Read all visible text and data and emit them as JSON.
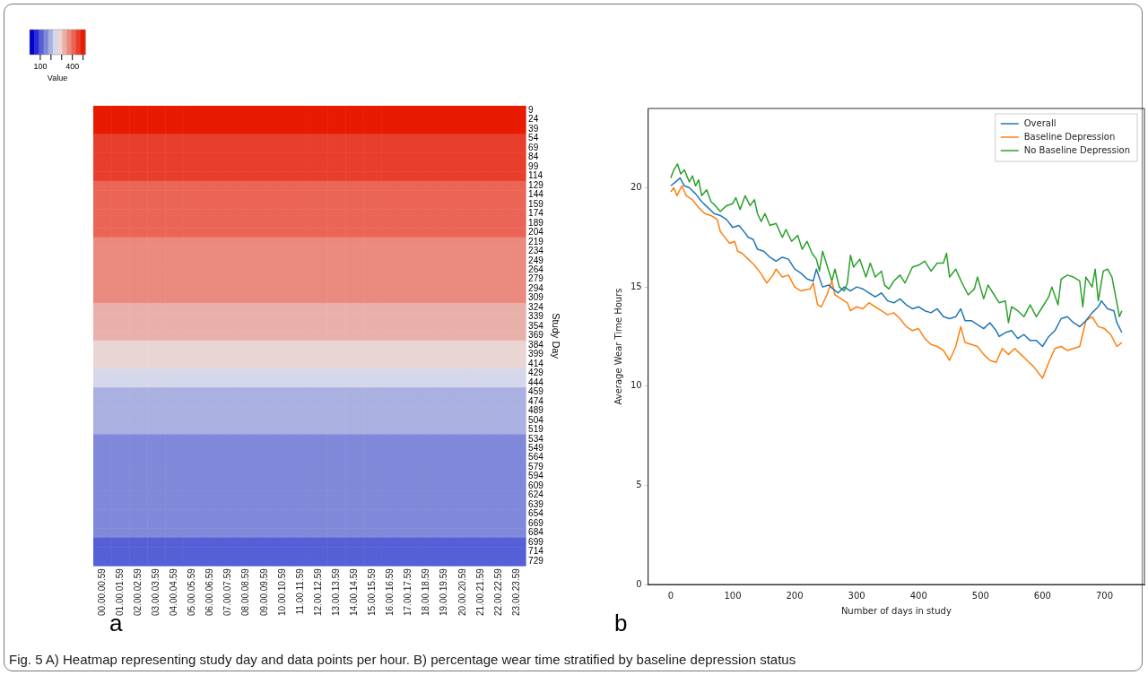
{
  "chart_data": [
    {
      "type": "heatmap",
      "ylabel": "Study Day",
      "clabel": "Value",
      "categories": [
        "00.00.00.59",
        "01.00.01.59",
        "02.00.02.59",
        "03.00.03.59",
        "04.00.04.59",
        "05.00.05.59",
        "06.00.06.59",
        "07.00.07.59",
        "08.00.08.59",
        "09.00.09.59",
        "10.00.10.59",
        "11.00.11.59",
        "12.00.12.59",
        "13.00.13.59",
        "14.00.14.59",
        "15.00.15.59",
        "16.00.16.59",
        "17.00.17.59",
        "18.00.18.59",
        "19.00.19.59",
        "20.00.20.59",
        "21.00.21.59",
        "22.00.22.59",
        "23.00.23.59"
      ],
      "y_categories": [
        "9",
        "24",
        "39",
        "54",
        "69",
        "84",
        "99",
        "114",
        "129",
        "144",
        "159",
        "174",
        "189",
        "204",
        "219",
        "234",
        "249",
        "264",
        "279",
        "294",
        "309",
        "324",
        "339",
        "354",
        "369",
        "384",
        "399",
        "414",
        "429",
        "444",
        "459",
        "474",
        "489",
        "504",
        "519",
        "534",
        "549",
        "564",
        "579",
        "594",
        "609",
        "624",
        "639",
        "654",
        "669",
        "684",
        "699",
        "714",
        "729"
      ],
      "cells": [
        [
          500,
          500,
          500,
          500,
          500,
          500,
          500,
          500,
          500,
          500,
          500,
          500,
          500,
          500,
          500,
          500,
          500,
          500,
          500,
          500,
          500,
          500,
          500,
          500
        ],
        [
          495,
          495,
          495,
          495,
          495,
          495,
          495,
          495,
          495,
          495,
          495,
          495,
          495,
          495,
          495,
          495,
          495,
          495,
          495,
          495,
          495,
          495,
          495,
          495
        ],
        [
          485,
          485,
          485,
          485,
          485,
          485,
          485,
          485,
          485,
          485,
          485,
          485,
          485,
          485,
          485,
          485,
          485,
          485,
          485,
          485,
          485,
          485,
          485,
          485
        ],
        [
          470,
          470,
          470,
          470,
          470,
          470,
          470,
          470,
          470,
          470,
          470,
          470,
          470,
          470,
          470,
          470,
          470,
          470,
          470,
          470,
          470,
          470,
          470,
          470
        ],
        [
          465,
          465,
          465,
          465,
          465,
          465,
          465,
          465,
          465,
          465,
          465,
          465,
          465,
          465,
          465,
          465,
          465,
          465,
          465,
          465,
          465,
          465,
          465,
          465
        ],
        [
          460,
          460,
          460,
          460,
          460,
          460,
          460,
          460,
          460,
          460,
          460,
          460,
          460,
          460,
          460,
          460,
          460,
          460,
          460,
          460,
          460,
          460,
          460,
          460
        ],
        [
          450,
          450,
          450,
          450,
          450,
          450,
          450,
          450,
          450,
          450,
          450,
          450,
          450,
          450,
          450,
          450,
          450,
          450,
          450,
          450,
          450,
          450,
          450,
          450
        ],
        [
          440,
          440,
          440,
          440,
          440,
          440,
          440,
          440,
          440,
          440,
          440,
          440,
          440,
          440,
          440,
          440,
          440,
          440,
          440,
          440,
          440,
          440,
          440,
          440
        ],
        [
          430,
          430,
          430,
          430,
          430,
          430,
          430,
          430,
          430,
          430,
          430,
          430,
          430,
          430,
          430,
          430,
          430,
          430,
          430,
          430,
          430,
          430,
          430,
          430
        ],
        [
          425,
          425,
          425,
          425,
          425,
          425,
          425,
          425,
          425,
          425,
          425,
          425,
          425,
          425,
          425,
          425,
          425,
          425,
          425,
          425,
          425,
          425,
          425,
          425
        ],
        [
          420,
          420,
          420,
          420,
          420,
          420,
          420,
          420,
          420,
          420,
          420,
          420,
          420,
          420,
          420,
          420,
          420,
          420,
          420,
          420,
          420,
          420,
          420,
          420
        ],
        [
          410,
          410,
          410,
          410,
          410,
          410,
          410,
          410,
          410,
          410,
          410,
          410,
          410,
          410,
          410,
          410,
          410,
          410,
          410,
          410,
          410,
          410,
          410,
          410
        ],
        [
          400,
          400,
          400,
          400,
          400,
          400,
          400,
          400,
          400,
          400,
          400,
          400,
          400,
          400,
          400,
          400,
          400,
          400,
          400,
          400,
          400,
          400,
          400,
          400
        ],
        [
          395,
          395,
          395,
          395,
          395,
          395,
          395,
          395,
          395,
          395,
          395,
          395,
          395,
          395,
          395,
          395,
          395,
          395,
          395,
          395,
          395,
          395,
          395,
          395
        ],
        [
          388,
          388,
          388,
          388,
          388,
          388,
          388,
          388,
          388,
          388,
          388,
          388,
          388,
          388,
          388,
          388,
          388,
          388,
          388,
          388,
          388,
          388,
          388,
          388
        ],
        [
          385,
          385,
          385,
          385,
          385,
          385,
          385,
          385,
          385,
          385,
          385,
          385,
          385,
          385,
          385,
          385,
          385,
          385,
          385,
          385,
          385,
          385,
          385,
          385
        ],
        [
          380,
          380,
          380,
          380,
          380,
          380,
          380,
          380,
          380,
          380,
          380,
          380,
          380,
          380,
          380,
          380,
          380,
          380,
          380,
          380,
          380,
          380,
          380,
          380
        ],
        [
          375,
          375,
          375,
          375,
          375,
          375,
          375,
          375,
          375,
          375,
          375,
          375,
          375,
          375,
          375,
          375,
          375,
          375,
          375,
          375,
          375,
          375,
          375,
          375
        ],
        [
          365,
          365,
          365,
          365,
          365,
          365,
          365,
          365,
          365,
          365,
          365,
          365,
          365,
          365,
          365,
          365,
          365,
          365,
          365,
          365,
          365,
          365,
          365,
          365
        ],
        [
          360,
          360,
          360,
          360,
          360,
          360,
          360,
          360,
          360,
          360,
          360,
          360,
          360,
          360,
          360,
          360,
          360,
          360,
          360,
          360,
          360,
          360,
          360,
          360
        ],
        [
          352,
          352,
          352,
          352,
          352,
          352,
          352,
          352,
          352,
          352,
          352,
          352,
          352,
          352,
          352,
          352,
          352,
          352,
          352,
          352,
          352,
          352,
          352,
          352
        ],
        [
          340,
          340,
          340,
          340,
          340,
          340,
          340,
          340,
          340,
          340,
          340,
          340,
          340,
          340,
          340,
          340,
          340,
          340,
          340,
          340,
          340,
          340,
          340,
          340
        ],
        [
          330,
          330,
          330,
          330,
          330,
          330,
          330,
          330,
          330,
          330,
          330,
          330,
          330,
          330,
          330,
          330,
          330,
          330,
          330,
          330,
          330,
          330,
          330,
          330
        ],
        [
          320,
          320,
          320,
          320,
          320,
          320,
          320,
          320,
          320,
          320,
          320,
          320,
          320,
          320,
          320,
          320,
          320,
          320,
          320,
          320,
          320,
          320,
          320,
          320
        ],
        [
          310,
          310,
          310,
          310,
          310,
          310,
          310,
          310,
          310,
          310,
          310,
          310,
          310,
          310,
          310,
          310,
          310,
          310,
          310,
          310,
          310,
          310,
          310,
          310
        ],
        [
          295,
          295,
          295,
          295,
          295,
          295,
          295,
          295,
          295,
          295,
          295,
          295,
          295,
          295,
          295,
          295,
          295,
          295,
          295,
          295,
          295,
          295,
          295,
          295
        ],
        [
          285,
          285,
          285,
          285,
          285,
          285,
          285,
          285,
          285,
          285,
          285,
          285,
          285,
          285,
          285,
          285,
          285,
          285,
          285,
          285,
          285,
          285,
          285,
          285
        ],
        [
          270,
          270,
          270,
          270,
          270,
          270,
          270,
          270,
          270,
          270,
          270,
          270,
          270,
          270,
          270,
          270,
          270,
          270,
          270,
          270,
          270,
          270,
          270,
          270
        ],
        [
          250,
          250,
          250,
          250,
          250,
          250,
          250,
          250,
          250,
          250,
          250,
          250,
          250,
          250,
          250,
          250,
          250,
          250,
          250,
          250,
          250,
          250,
          250,
          250
        ],
        [
          235,
          235,
          235,
          235,
          235,
          235,
          235,
          235,
          235,
          235,
          235,
          235,
          235,
          235,
          235,
          235,
          235,
          235,
          235,
          235,
          235,
          235,
          235,
          235
        ],
        [
          212,
          212,
          212,
          212,
          212,
          212,
          212,
          212,
          212,
          212,
          212,
          212,
          212,
          212,
          212,
          212,
          212,
          212,
          212,
          212,
          212,
          212,
          212,
          212
        ],
        [
          205,
          205,
          205,
          205,
          205,
          205,
          205,
          205,
          205,
          205,
          205,
          205,
          205,
          205,
          205,
          205,
          205,
          205,
          205,
          205,
          205,
          205,
          205,
          205
        ],
        [
          195,
          195,
          195,
          195,
          195,
          195,
          195,
          195,
          195,
          195,
          195,
          195,
          195,
          195,
          195,
          195,
          195,
          195,
          195,
          195,
          195,
          195,
          195,
          195
        ],
        [
          185,
          185,
          185,
          185,
          185,
          185,
          185,
          185,
          185,
          185,
          185,
          185,
          185,
          185,
          185,
          185,
          185,
          185,
          185,
          185,
          185,
          185,
          185,
          185
        ],
        [
          178,
          178,
          178,
          178,
          178,
          178,
          178,
          178,
          178,
          178,
          178,
          178,
          178,
          178,
          178,
          178,
          178,
          178,
          178,
          178,
          178,
          178,
          178,
          178
        ],
        [
          170,
          170,
          170,
          170,
          170,
          170,
          170,
          170,
          170,
          170,
          170,
          170,
          170,
          170,
          170,
          170,
          170,
          170,
          170,
          170,
          170,
          170,
          170,
          170
        ],
        [
          168,
          168,
          168,
          168,
          168,
          168,
          168,
          168,
          168,
          168,
          168,
          168,
          168,
          168,
          168,
          168,
          168,
          168,
          168,
          168,
          168,
          168,
          168,
          168
        ],
        [
          165,
          165,
          165,
          165,
          165,
          165,
          165,
          165,
          165,
          165,
          165,
          165,
          165,
          165,
          165,
          165,
          165,
          165,
          165,
          165,
          165,
          165,
          165,
          165
        ],
        [
          162,
          162,
          162,
          162,
          162,
          162,
          162,
          162,
          162,
          162,
          162,
          162,
          162,
          162,
          162,
          162,
          162,
          162,
          162,
          162,
          162,
          162,
          162,
          162
        ],
        [
          160,
          160,
          160,
          160,
          160,
          160,
          160,
          160,
          160,
          160,
          160,
          160,
          160,
          160,
          160,
          160,
          160,
          160,
          160,
          160,
          160,
          160,
          160,
          160
        ],
        [
          157,
          157,
          157,
          157,
          157,
          157,
          157,
          157,
          157,
          157,
          157,
          157,
          157,
          157,
          157,
          157,
          157,
          157,
          157,
          157,
          157,
          157,
          157,
          157
        ],
        [
          155,
          155,
          155,
          155,
          155,
          155,
          155,
          155,
          155,
          155,
          155,
          155,
          155,
          155,
          155,
          155,
          155,
          155,
          155,
          155,
          155,
          155,
          155,
          155
        ],
        [
          150,
          150,
          150,
          150,
          150,
          150,
          150,
          150,
          150,
          150,
          150,
          150,
          150,
          150,
          150,
          150,
          150,
          150,
          150,
          150,
          150,
          150,
          150,
          150
        ],
        [
          145,
          145,
          145,
          145,
          145,
          145,
          145,
          145,
          145,
          145,
          145,
          145,
          145,
          145,
          145,
          145,
          145,
          145,
          145,
          145,
          145,
          145,
          145,
          145
        ],
        [
          140,
          140,
          140,
          140,
          140,
          140,
          140,
          140,
          140,
          140,
          140,
          140,
          140,
          140,
          140,
          140,
          140,
          140,
          140,
          140,
          140,
          140,
          140,
          140
        ],
        [
          135,
          135,
          135,
          135,
          135,
          135,
          135,
          135,
          135,
          135,
          135,
          135,
          135,
          135,
          135,
          135,
          135,
          135,
          135,
          135,
          135,
          135,
          135,
          135
        ],
        [
          125,
          125,
          125,
          125,
          125,
          125,
          125,
          125,
          125,
          125,
          125,
          125,
          125,
          125,
          125,
          125,
          125,
          125,
          125,
          125,
          125,
          125,
          125,
          125
        ],
        [
          115,
          115,
          115,
          115,
          115,
          115,
          115,
          115,
          115,
          115,
          115,
          115,
          115,
          115,
          115,
          115,
          115,
          115,
          115,
          115,
          115,
          115,
          115,
          115
        ],
        [
          105,
          105,
          105,
          105,
          105,
          105,
          105,
          105,
          105,
          105,
          105,
          105,
          105,
          105,
          105,
          105,
          105,
          105,
          105,
          105,
          105,
          105,
          105,
          105
        ]
      ],
      "clim": [
        0,
        520
      ],
      "cticks": [
        {
          "value": 100,
          "label": "100"
        },
        {
          "value": 200,
          "label": null
        },
        {
          "value": 300,
          "label": null
        },
        {
          "value": 400,
          "label": "400"
        },
        {
          "value": 500,
          "label": null
        }
      ],
      "annotations": [
        "a"
      ]
    },
    {
      "type": "line",
      "xlabel": "Number of days in study",
      "ylabel": "Average Wear Time Hours",
      "xlim": [
        -36.4,
        764.4
      ],
      "xticks": [
        0,
        100,
        200,
        300,
        400,
        500,
        600,
        700
      ],
      "ylim": [
        0,
        24
      ],
      "yticks": [
        0,
        5,
        10,
        15,
        20
      ],
      "grid": false,
      "legend": "top right",
      "marker": "none",
      "line_style": "solid",
      "series": [
        {
          "name": "Overall",
          "color": "#1f77b4",
          "x": [
            0,
            8,
            15,
            22,
            30,
            40,
            50,
            60,
            70,
            80,
            90,
            100,
            110,
            118,
            125,
            133,
            140,
            150,
            160,
            170,
            180,
            190,
            200,
            210,
            220,
            230,
            235,
            245,
            255,
            262,
            270,
            280,
            290,
            300,
            310,
            320,
            330,
            340,
            350,
            360,
            370,
            380,
            390,
            400,
            410,
            420,
            430,
            440,
            450,
            460,
            468,
            475,
            485,
            495,
            505,
            515,
            525,
            530,
            540,
            550,
            560,
            570,
            580,
            590,
            600,
            610,
            620,
            630,
            640,
            650,
            660,
            670,
            680,
            690,
            695,
            705,
            715,
            720,
            728
          ],
          "values": [
            20.1,
            20.3,
            20.5,
            20.1,
            20.0,
            19.7,
            19.3,
            19.0,
            18.7,
            18.6,
            18.4,
            18.0,
            18.1,
            17.8,
            17.5,
            17.4,
            16.9,
            16.8,
            16.5,
            16.3,
            16.5,
            16.4,
            15.9,
            15.7,
            15.4,
            15.3,
            15.9,
            15.0,
            15.1,
            14.9,
            14.7,
            15.0,
            14.8,
            15.0,
            14.9,
            14.7,
            14.5,
            14.7,
            14.3,
            14.2,
            14.4,
            14.1,
            13.9,
            14.0,
            13.8,
            13.7,
            13.9,
            13.5,
            13.4,
            13.5,
            13.9,
            13.3,
            13.3,
            13.1,
            12.9,
            13.2,
            12.8,
            12.5,
            12.7,
            12.8,
            12.4,
            12.6,
            12.3,
            12.3,
            12.0,
            12.5,
            12.8,
            13.4,
            13.5,
            13.2,
            13.0,
            13.3,
            13.7,
            14.0,
            14.3,
            13.9,
            13.8,
            13.2,
            12.7
          ]
        },
        {
          "name": "Baseline Depression",
          "color": "#ff7f0e",
          "x": [
            0,
            5,
            10,
            18,
            25,
            35,
            45,
            55,
            65,
            75,
            80,
            85,
            95,
            103,
            108,
            115,
            125,
            135,
            145,
            155,
            165,
            170,
            180,
            190,
            200,
            210,
            225,
            230,
            237,
            243,
            252,
            260,
            265,
            275,
            285,
            290,
            300,
            310,
            320,
            330,
            340,
            350,
            360,
            370,
            380,
            390,
            400,
            410,
            420,
            430,
            440,
            450,
            460,
            468,
            475,
            485,
            495,
            505,
            515,
            525,
            535,
            545,
            555,
            565,
            575,
            585,
            595,
            600,
            610,
            620,
            630,
            640,
            650,
            660,
            670,
            680,
            690,
            700,
            710,
            720,
            728
          ],
          "values": [
            19.8,
            20.0,
            19.6,
            20.1,
            19.6,
            19.4,
            19.0,
            18.7,
            18.6,
            18.4,
            17.8,
            17.6,
            17.2,
            17.3,
            16.8,
            16.7,
            16.4,
            16.1,
            15.7,
            15.2,
            15.6,
            15.9,
            15.5,
            15.6,
            15.0,
            14.8,
            14.9,
            15.2,
            14.1,
            14.0,
            14.6,
            15.3,
            14.6,
            14.4,
            14.2,
            13.8,
            14.0,
            13.9,
            14.2,
            14.0,
            13.8,
            13.6,
            13.7,
            13.4,
            13.0,
            12.8,
            12.9,
            12.4,
            12.1,
            12.0,
            11.8,
            11.3,
            12.0,
            13.0,
            12.2,
            12.1,
            12.0,
            11.6,
            11.3,
            11.2,
            11.9,
            11.6,
            11.9,
            11.6,
            11.3,
            11.0,
            10.6,
            10.4,
            11.2,
            11.9,
            12.0,
            11.8,
            11.9,
            12.0,
            13.3,
            13.5,
            13.0,
            12.9,
            12.6,
            12.0,
            12.2
          ]
        },
        {
          "name": "No Baseline Depression",
          "color": "#2ca02c",
          "x": [
            0,
            5,
            11,
            16,
            22,
            30,
            35,
            40,
            45,
            50,
            58,
            65,
            72,
            80,
            90,
            100,
            105,
            112,
            120,
            128,
            135,
            140,
            146,
            152,
            160,
            170,
            180,
            186,
            195,
            205,
            212,
            220,
            228,
            235,
            240,
            245,
            252,
            260,
            265,
            272,
            280,
            285,
            290,
            295,
            305,
            315,
            322,
            330,
            340,
            345,
            352,
            360,
            370,
            378,
            390,
            400,
            410,
            420,
            430,
            440,
            445,
            450,
            460,
            470,
            480,
            490,
            495,
            505,
            512,
            520,
            530,
            540,
            545,
            550,
            560,
            570,
            580,
            590,
            600,
            610,
            615,
            625,
            630,
            640,
            650,
            660,
            665,
            670,
            680,
            685,
            690,
            698,
            705,
            712,
            720,
            724,
            728
          ],
          "values": [
            20.5,
            20.9,
            21.2,
            20.7,
            20.9,
            20.3,
            20.6,
            20.1,
            20.4,
            19.6,
            19.9,
            19.3,
            19.1,
            18.8,
            19.1,
            19.2,
            19.5,
            18.9,
            19.6,
            19.1,
            19.4,
            18.7,
            18.3,
            18.7,
            18.1,
            18.2,
            17.5,
            17.9,
            17.3,
            17.6,
            16.9,
            17.3,
            16.7,
            16.4,
            15.8,
            16.8,
            16.1,
            15.3,
            15.9,
            15.0,
            14.8,
            15.2,
            16.6,
            16.0,
            16.4,
            15.5,
            16.2,
            15.5,
            15.8,
            15.1,
            14.9,
            15.3,
            15.6,
            15.2,
            16.0,
            16.1,
            16.3,
            15.8,
            16.2,
            16.2,
            16.7,
            15.5,
            15.9,
            15.2,
            14.6,
            14.9,
            15.5,
            14.4,
            15.1,
            14.7,
            14.2,
            14.3,
            13.2,
            14.0,
            13.8,
            13.5,
            14.1,
            13.5,
            14.0,
            14.5,
            15.0,
            14.1,
            15.4,
            15.6,
            15.5,
            15.3,
            14.0,
            15.5,
            15.0,
            15.9,
            14.3,
            15.8,
            15.9,
            15.5,
            14.2,
            13.5,
            13.8
          ]
        }
      ],
      "annotations": [
        "b",
        "Fig. 5  A) Heatmap representing study day and data points per hour. B) percentage wear time stratified by baseline depression status"
      ]
    }
  ]
}
